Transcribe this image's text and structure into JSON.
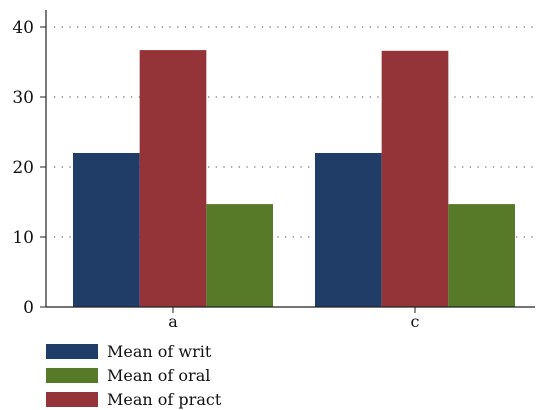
{
  "chart_data": {
    "type": "bar",
    "title": "",
    "xlabel": "",
    "ylabel": "",
    "categories": [
      "a",
      "c"
    ],
    "series": [
      {
        "name": "Mean of writ",
        "values": [
          22,
          22
        ],
        "color": "#1f3d66"
      },
      {
        "name": "Mean of pract",
        "values": [
          36.7,
          36.6
        ],
        "color": "#943438"
      },
      {
        "name": "Mean of oral",
        "values": [
          14.7,
          14.7
        ],
        "color": "#567a27"
      }
    ],
    "legend_order": [
      "Mean of writ",
      "Mean of oral",
      "Mean of pract"
    ],
    "ylim": [
      0,
      40
    ],
    "yticks": [
      0,
      10,
      20,
      30,
      40
    ],
    "grid": "horizontal dotted",
    "legend_position": "bottom-left"
  }
}
